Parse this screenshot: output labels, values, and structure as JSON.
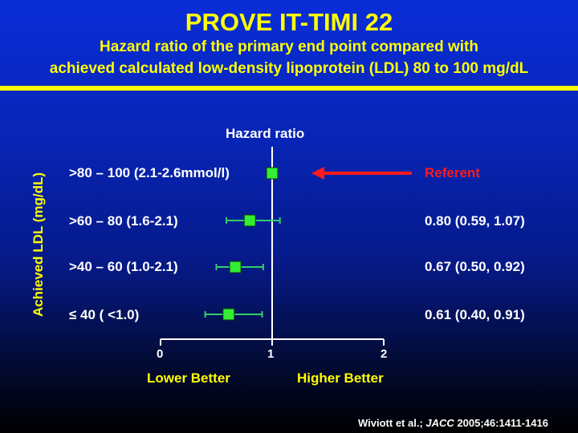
{
  "title": "PROVE IT-TIMI 22",
  "subtitle_line1": "Hazard ratio of the primary end point compared with",
  "subtitle_line2": "achieved calculated low-density lipoprotein (LDL) 80 to 100 mg/dL",
  "chart_data": {
    "type": "forest",
    "title": "Hazard ratio",
    "ylabel": "Achieved LDL (mg/dL)",
    "xlim": [
      0,
      2
    ],
    "xticks": [
      "0",
      "1",
      "2"
    ],
    "reference_line": 1,
    "x_note_left": "Lower Better",
    "x_note_right": "Higher Better",
    "rows": [
      {
        "label": ">80 – 100 (2.1-2.6mmol/l)",
        "hr": 1.0,
        "lo": 1.0,
        "hi": 1.0,
        "value_text": "Referent",
        "referent": true
      },
      {
        "label": ">60 – 80 (1.6-2.1)",
        "hr": 0.8,
        "lo": 0.59,
        "hi": 1.07,
        "value_text": "0.80 (0.59, 1.07)",
        "referent": false
      },
      {
        "label": ">40 – 60 (1.0-2.1)",
        "hr": 0.67,
        "lo": 0.5,
        "hi": 0.92,
        "value_text": "0.67 (0.50, 0.92)",
        "referent": false
      },
      {
        "label": "≤ 40 ( <1.0)",
        "hr": 0.61,
        "lo": 0.4,
        "hi": 0.91,
        "value_text": "0.61 (0.40, 0.91)",
        "referent": false
      }
    ]
  },
  "citation": {
    "authors": "Wiviott et al.;",
    "journal": "JACC",
    "ref": "2005;46:1411-1416"
  },
  "colors": {
    "marker": "#33ee33",
    "ci": "#33cc66",
    "referent": "#ff1a1a",
    "axis": "#ffffff",
    "accent": "#ffff00"
  }
}
